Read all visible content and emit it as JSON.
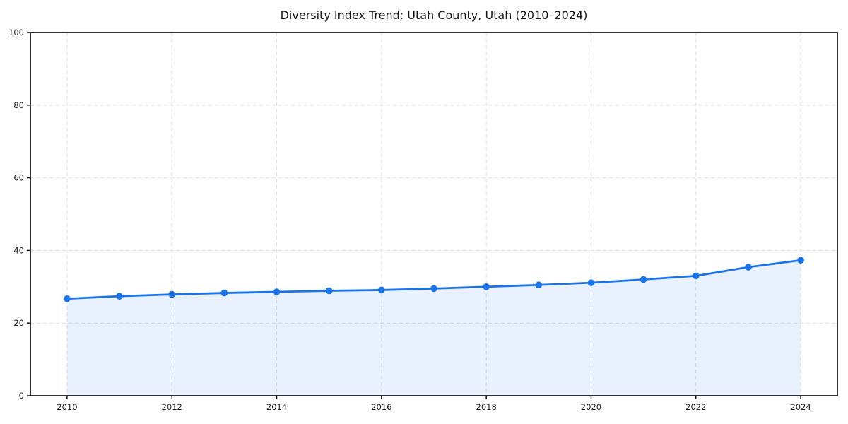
{
  "chart": {
    "colors": {
      "line": "#1a73e8",
      "marker": "#1a73e8",
      "area_fill": "rgba(26, 115, 232, 0.10)",
      "grid": "#dcdcdc",
      "axis": "#000000",
      "tick_label": "#1a1a1a",
      "background": "#ffffff"
    }
  },
  "chart_data": {
    "type": "area",
    "title": "Diversity Index Trend: Utah County, Utah (2010–2024)",
    "series_name": "Diversity Index",
    "x": [
      2010,
      2011,
      2012,
      2013,
      2014,
      2015,
      2016,
      2017,
      2018,
      2019,
      2020,
      2021,
      2022,
      2023,
      2024
    ],
    "values": [
      26.7,
      27.4,
      27.9,
      28.3,
      28.6,
      28.9,
      29.1,
      29.5,
      30.0,
      30.5,
      31.1,
      32.0,
      33.0,
      35.4,
      37.3
    ],
    "xlabel": "",
    "ylabel": "",
    "ylim": [
      0,
      100
    ],
    "yticks": [
      0,
      20,
      40,
      60,
      80,
      100
    ],
    "xticks": [
      2010,
      2012,
      2014,
      2016,
      2018,
      2020,
      2022,
      2024
    ],
    "grid": true,
    "grid_style": "dashed",
    "legend": "none",
    "marker": "circle",
    "line_style": "solid"
  }
}
